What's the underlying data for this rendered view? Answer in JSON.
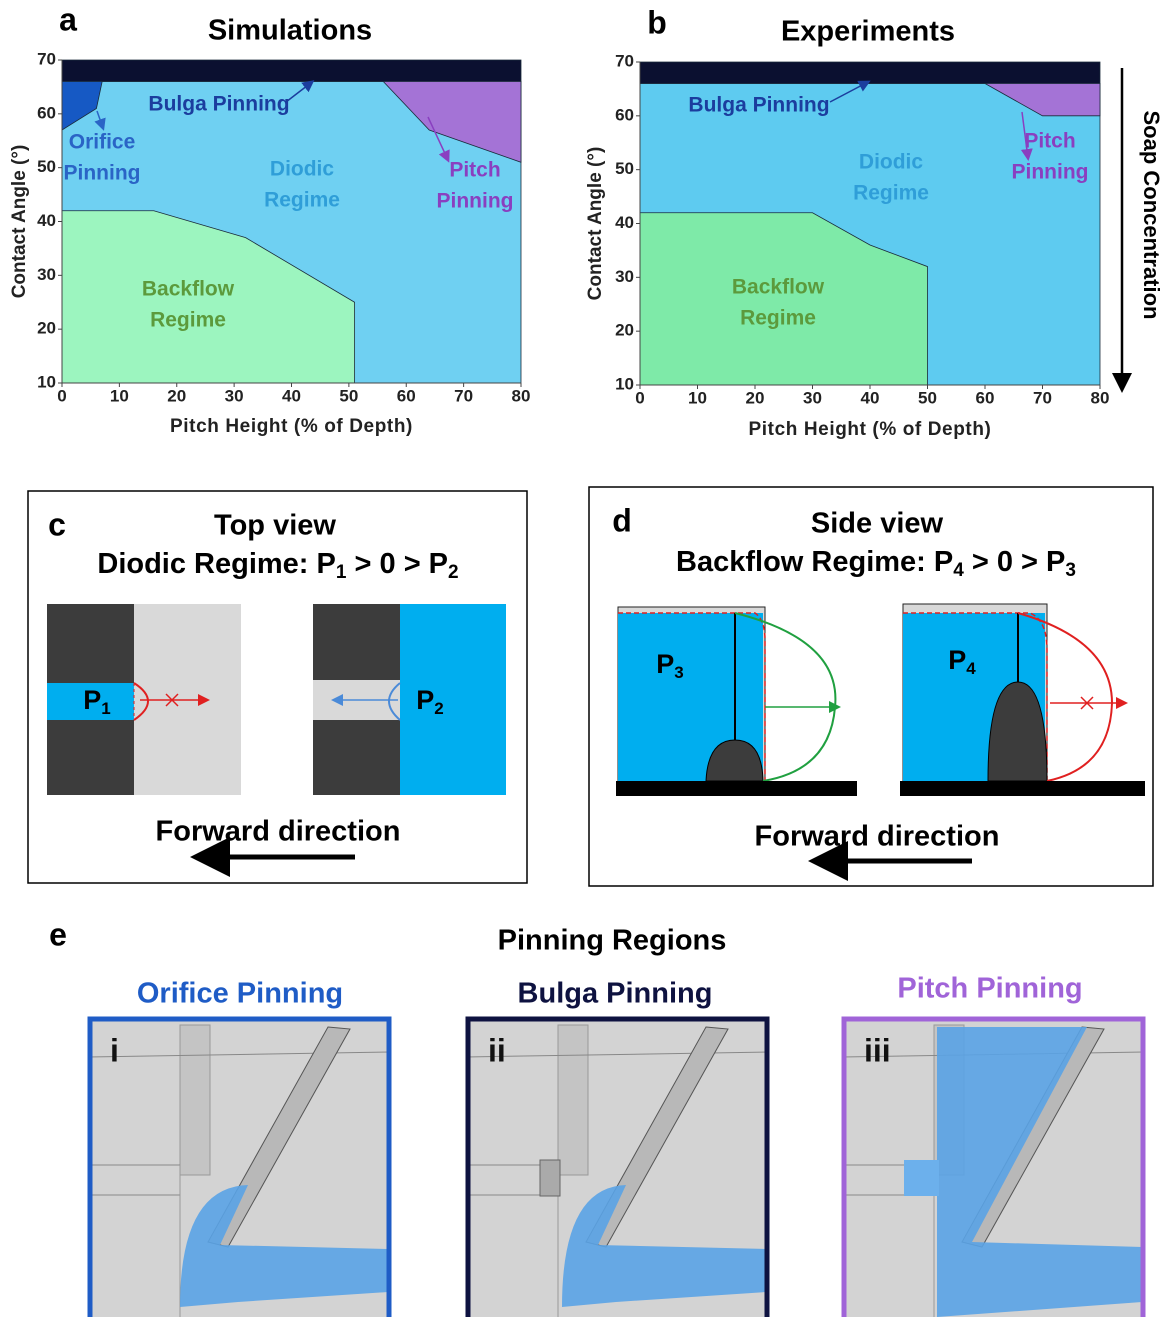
{
  "chart_data": [
    {
      "type": "region-map",
      "label": "a",
      "title": "Simulations",
      "xlabel": "Pitch Height (% of Depth)",
      "ylabel": "Contact Angle (°)",
      "xlim": [
        0,
        80
      ],
      "ylim": [
        10,
        70
      ],
      "xticks": [
        0,
        10,
        20,
        30,
        40,
        50,
        60,
        70,
        80
      ],
      "yticks": [
        10,
        20,
        30,
        40,
        50,
        60,
        70
      ],
      "regions": [
        {
          "x": [
            0,
            0,
            80,
            80
          ],
          "y": [
            10,
            66,
            66,
            10
          ],
          "color": "#6fd0f2"
        },
        {
          "x": [
            0,
            0,
            80,
            80
          ],
          "y": [
            66,
            70,
            70,
            66
          ],
          "color": "#0b1030"
        },
        {
          "x": [
            0,
            6,
            7,
            0
          ],
          "y": [
            57,
            61,
            66,
            66
          ],
          "color": "#1659c4"
        },
        {
          "x": [
            56,
            80,
            80,
            64
          ],
          "y": [
            66,
            66,
            51,
            57
          ],
          "color": "#a473d6"
        },
        {
          "x": [
            0,
            0,
            16,
            32,
            51,
            51
          ],
          "y": [
            10,
            42,
            42,
            37,
            25,
            10
          ],
          "color": "#9cf5bf"
        }
      ],
      "annotations": [
        {
          "lines": [
            "Bulga Pinning"
          ],
          "color": "#1b3d9e"
        },
        {
          "lines": [
            "Orifice",
            "Pinning"
          ],
          "color": "#2a64c6"
        },
        {
          "lines": [
            "Diodic",
            "Regime"
          ],
          "color": "#2f9ed8"
        },
        {
          "lines": [
            "Pitch",
            "Pinning"
          ],
          "color": "#8a3fc0"
        },
        {
          "lines": [
            "Backflow",
            "Regime"
          ],
          "color": "#5c9a3c"
        }
      ]
    },
    {
      "type": "region-map",
      "label": "b",
      "title": "Experiments",
      "xlabel": "Pitch Height (% of Depth)",
      "ylabel": "Contact Angle (°)",
      "xlim": [
        0,
        80
      ],
      "ylim": [
        10,
        70
      ],
      "xticks": [
        0,
        10,
        20,
        30,
        40,
        50,
        60,
        70,
        80
      ],
      "yticks": [
        10,
        20,
        30,
        40,
        50,
        60,
        70
      ],
      "regions": [
        {
          "x": [
            0,
            0,
            80,
            80
          ],
          "y": [
            10,
            66,
            66,
            10
          ],
          "color": "#5ecbf0"
        },
        {
          "x": [
            0,
            0,
            80,
            80
          ],
          "y": [
            66,
            70,
            70,
            66
          ],
          "color": "#0b1030"
        },
        {
          "x": [
            60,
            80,
            80,
            70
          ],
          "y": [
            66,
            66,
            60,
            60
          ],
          "color": "#a473d6"
        },
        {
          "x": [
            0,
            0,
            30,
            40,
            50,
            50
          ],
          "y": [
            10,
            42,
            42,
            36,
            32,
            10
          ],
          "color": "#7eeaa8"
        }
      ],
      "annotations": [
        {
          "lines": [
            "Bulga Pinning"
          ],
          "color": "#1b3d9e"
        },
        {
          "lines": [
            "Diodic",
            "Regime"
          ],
          "color": "#2f9ed8"
        },
        {
          "lines": [
            "Pitch",
            "Pinning"
          ],
          "color": "#8a3fc0"
        },
        {
          "lines": [
            "Backflow",
            "Regime"
          ],
          "color": "#5c9a3c"
        }
      ]
    }
  ],
  "side_label": "Soap Concentration",
  "panel_c": {
    "label": "c",
    "title": "Top view",
    "subtitle": [
      "Diodic Regime: P",
      "1",
      " > 0 > P",
      "2"
    ],
    "left_label": [
      "P",
      "1"
    ],
    "right_label": [
      "P",
      "2"
    ],
    "caption": "Forward direction"
  },
  "panel_d": {
    "label": "d",
    "title": "Side view",
    "subtitle": [
      "Backflow Regime: P",
      "4",
      " > 0 > P",
      "3"
    ],
    "left_label": [
      "P",
      "3"
    ],
    "right_label": [
      "P",
      "4"
    ],
    "caption": "Forward direction"
  },
  "panel_e": {
    "label": "e",
    "title": "Pinning Regions",
    "images": [
      {
        "title": "Orifice Pinning",
        "numeral": "i",
        "color": "#1f5cc6"
      },
      {
        "title": "Bulga Pinning",
        "numeral": "ii",
        "color": "#0e1240"
      },
      {
        "title": "Pitch Pinning",
        "numeral": "iii",
        "color": "#a064d8"
      }
    ]
  }
}
